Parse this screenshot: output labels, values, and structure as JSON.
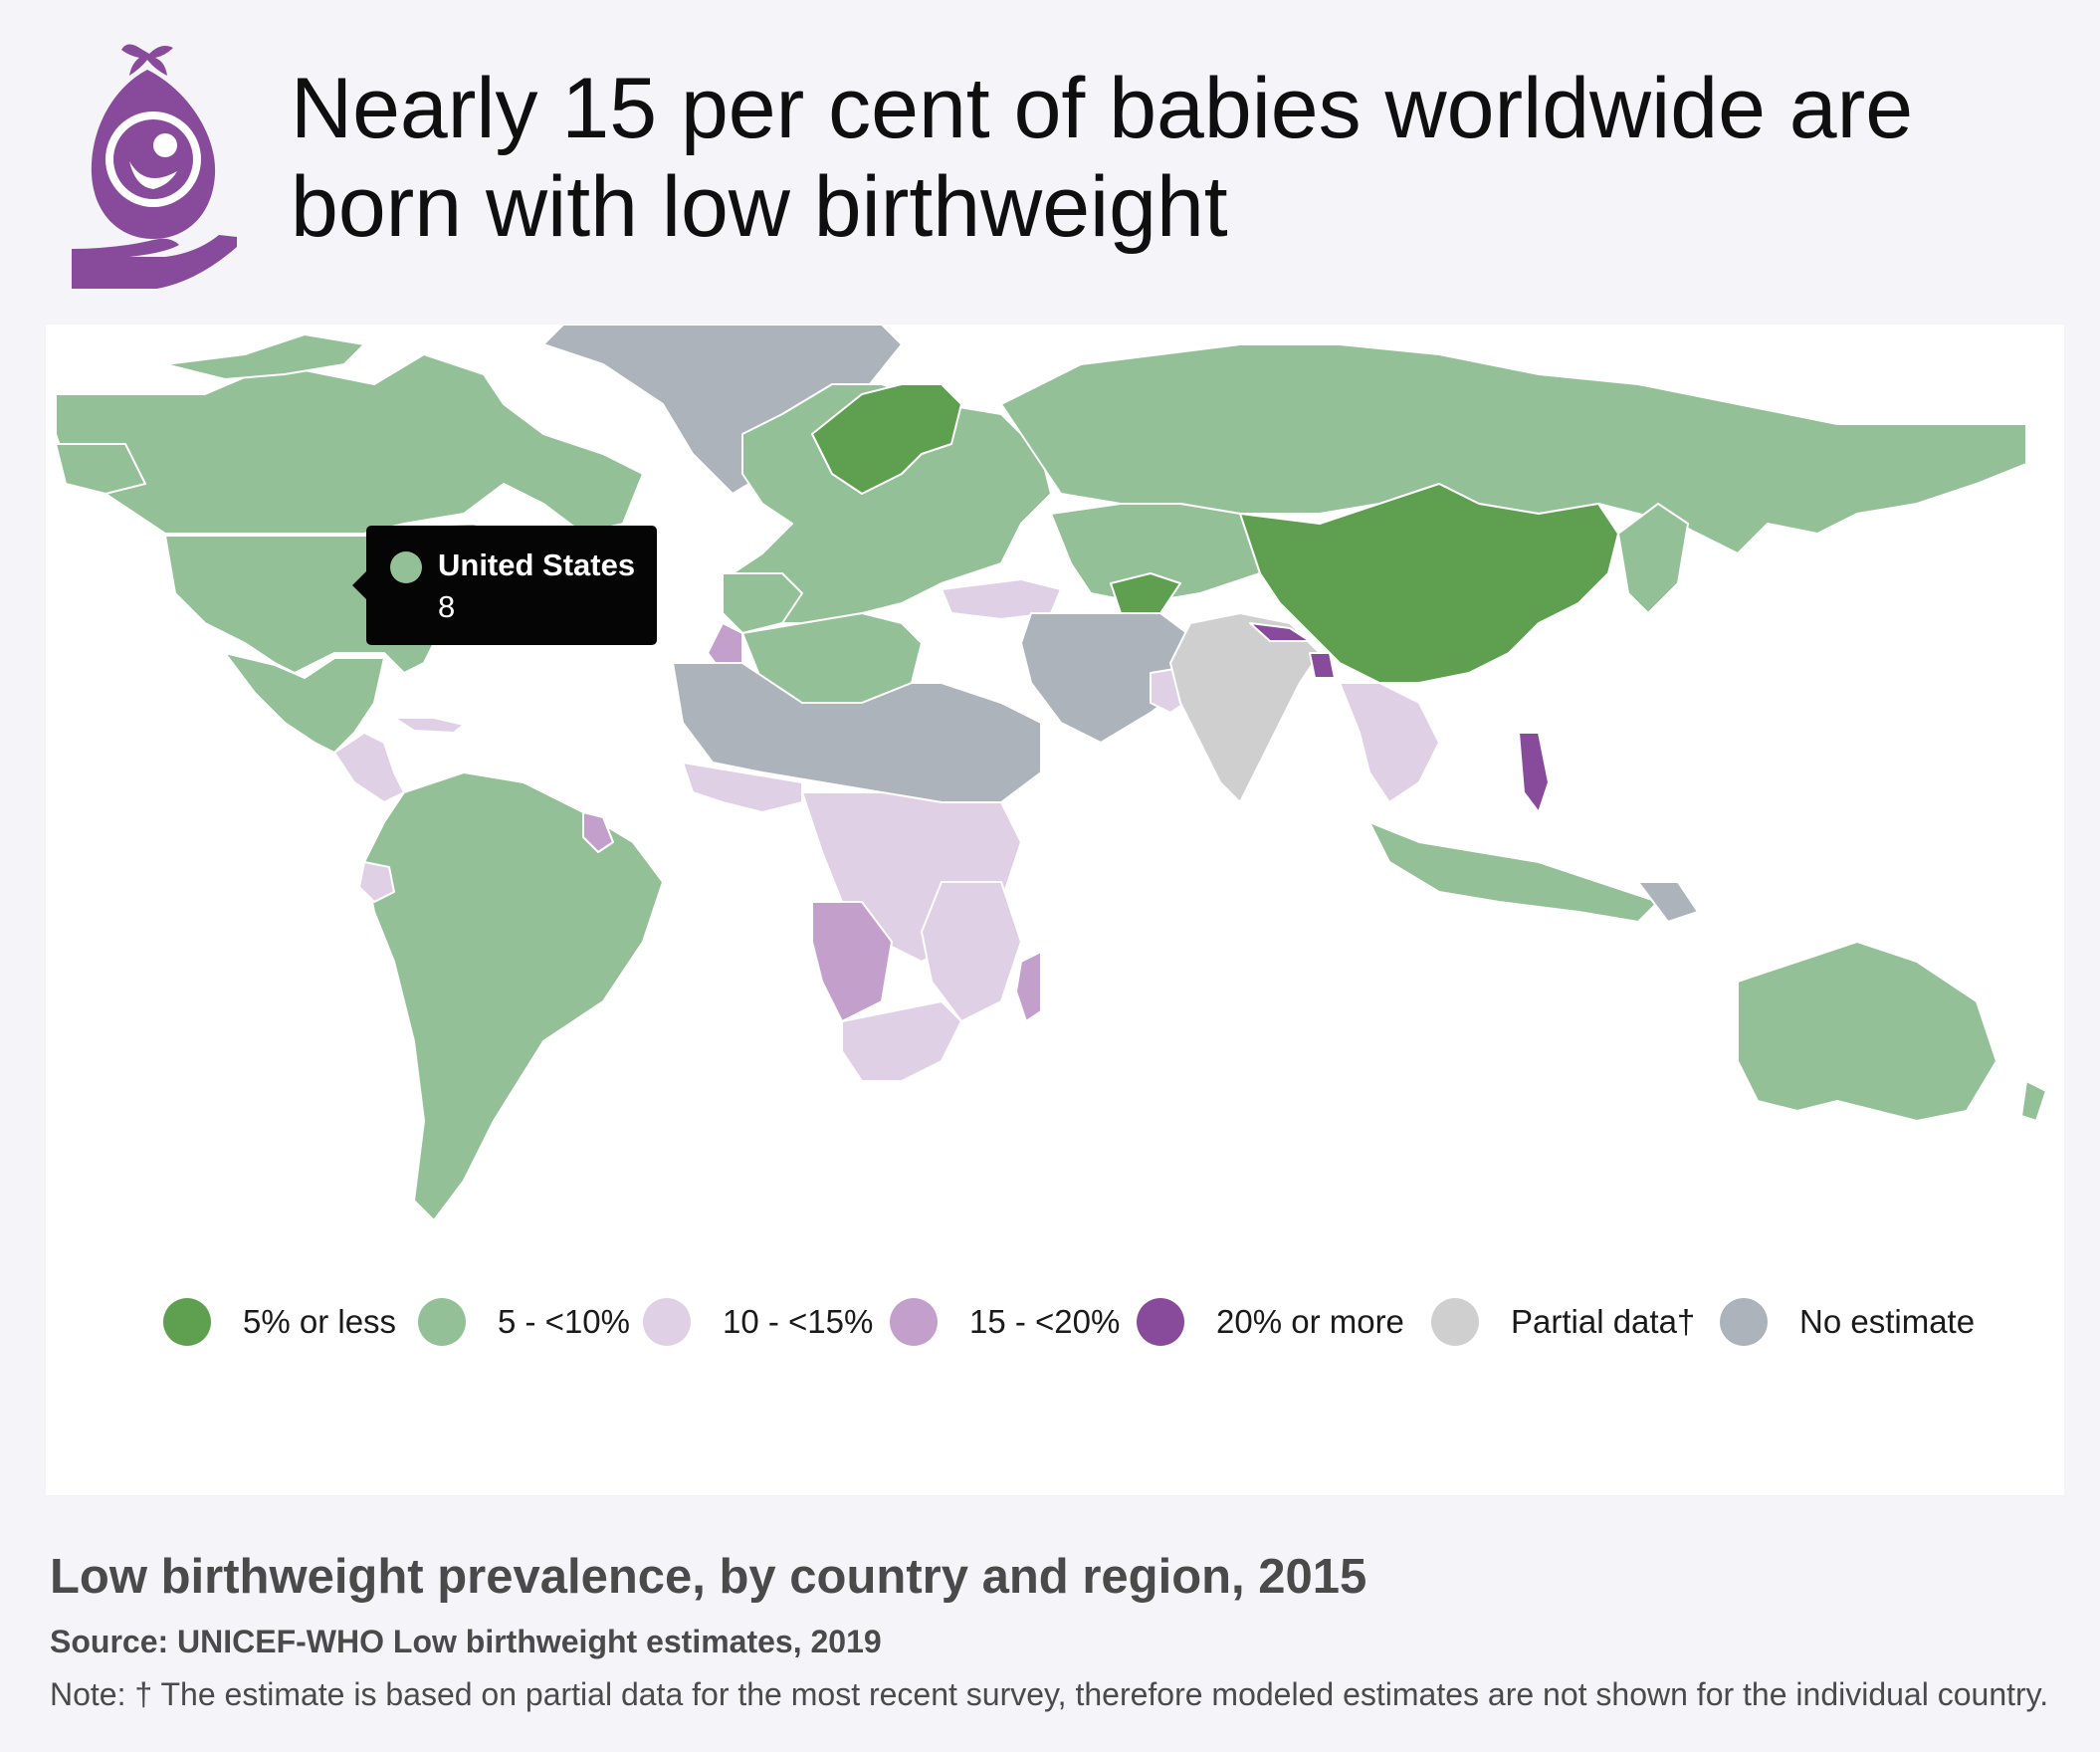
{
  "header": {
    "icon": "baby-in-hand-icon",
    "title": "Nearly 15 per cent of babies worldwide are born with low birthweight"
  },
  "map": {
    "type": "choropleth-world-map",
    "tooltip": {
      "country": "United States",
      "value": "8"
    },
    "colors": {
      "five_or_less": "#5fa050",
      "five_to_ten": "#93c096",
      "ten_to_fifteen": "#e0d0e6",
      "fifteen_to_twenty": "#c3a0cc",
      "twenty_or_more": "#884b9c",
      "partial": "#cfcfcf",
      "no_estimate": "#adb3bb"
    },
    "legend": [
      {
        "label": "5% or less",
        "color": "#5fa050"
      },
      {
        "label": "5 - <10%",
        "color": "#93c096"
      },
      {
        "label": "10 - <15%",
        "color": "#e0d0e6"
      },
      {
        "label": "15 - <20%",
        "color": "#c3a0cc"
      },
      {
        "label": "20% or more",
        "color": "#884b9c"
      },
      {
        "label": "Partial data†",
        "color": "#cfcfcf"
      },
      {
        "label": "No estimate",
        "color": "#adb3bb"
      }
    ]
  },
  "footer": {
    "subtitle": "Low birthweight prevalence, by country and region, 2015",
    "source": "Source: UNICEF-WHO Low birthweight estimates, 2019",
    "note": "Note: † The estimate is based on partial data for the most recent survey, therefore modeled estimates are not shown for the individual country."
  }
}
